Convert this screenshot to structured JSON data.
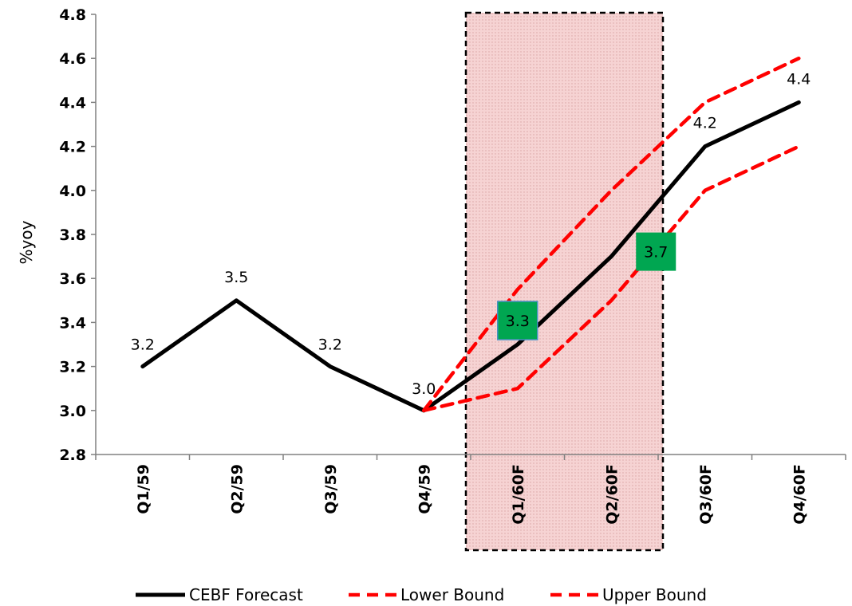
{
  "chart_data": {
    "type": "line",
    "categories": [
      "Q1/59",
      "Q2/59",
      "Q3/59",
      "Q4/59",
      "Q1/60F",
      "Q2/60F",
      "Q3/60F",
      "Q4/60F"
    ],
    "ylabel": "%yoy",
    "ylim": [
      2.8,
      4.8
    ],
    "yticks": [
      "2.8",
      "3.0",
      "3.2",
      "3.4",
      "3.6",
      "3.8",
      "4.0",
      "4.2",
      "4.4",
      "4.6",
      "4.8"
    ],
    "grid": false,
    "legend_position": "bottom",
    "series": [
      {
        "name": "CEBF Forecast",
        "values": [
          3.2,
          3.5,
          3.2,
          3.0,
          3.3,
          3.7,
          4.2,
          4.4
        ],
        "color": "#000000",
        "style": "solid",
        "labels": [
          "3.2",
          "3.5",
          "3.2",
          "3.0",
          "3.3",
          "3.7",
          "4.2",
          "4.4"
        ]
      },
      {
        "name": "Lower Bound",
        "values": [
          null,
          null,
          null,
          3.0,
          3.1,
          3.5,
          4.0,
          4.2
        ],
        "color": "#ff0000",
        "style": "dashed"
      },
      {
        "name": "Upper Bound",
        "values": [
          null,
          null,
          null,
          3.0,
          3.55,
          4.0,
          4.4,
          4.6
        ],
        "color": "#ff0000",
        "style": "dashed"
      }
    ],
    "highlight": {
      "categories": [
        "Q1/60F",
        "Q2/60F"
      ],
      "fill": "#f4cccc",
      "border": "#000000"
    },
    "label_box_color": "#00a651"
  }
}
